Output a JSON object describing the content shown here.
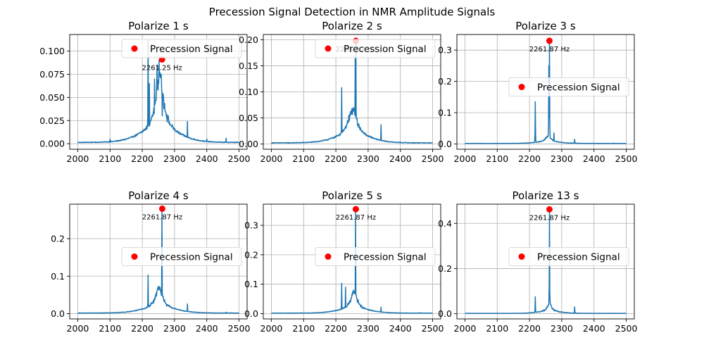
{
  "figure": {
    "title": "Precession Signal Detection in NMR Amplitude Signals"
  },
  "colors": {
    "line": "#1f77b4",
    "marker": "#ff0000",
    "grid": "#b0b0b0",
    "legend_border": "#d9d9d9"
  },
  "chart_data": [
    {
      "type": "line",
      "title": "Polarize 1 s",
      "xlabel": "",
      "ylabel": "",
      "xlim": [
        1975,
        2525
      ],
      "ylim": [
        -0.006,
        0.118
      ],
      "xticks": [
        2000,
        2100,
        2200,
        2300,
        2400,
        2500
      ],
      "yticks": [
        0.0,
        0.025,
        0.05,
        0.075,
        0.1
      ],
      "ytick_labels": [
        "0.000",
        "0.025",
        "0.050",
        "0.075",
        "0.100"
      ],
      "grid": true,
      "legend": {
        "entries": [
          "Precession Signal"
        ],
        "placement": "top-right"
      },
      "series": [
        {
          "kind": "line",
          "profile": {
            "base": 0.0012,
            "peak_center": 2254,
            "peak_amp": 0.062,
            "peak_width": 14,
            "skirt_amp": 0.012,
            "skirt_width": 60,
            "spikes": [
              [
                2100,
                0.005
              ],
              [
                2218,
                0.112
              ],
              [
                2222,
                0.065
              ],
              [
                2238,
                0.07
              ],
              [
                2246,
                0.085
              ],
              [
                2252,
                0.09
              ],
              [
                2258,
                0.075
              ],
              [
                2262,
                0.03
              ],
              [
                2340,
                0.024
              ],
              [
                2400,
                0.005
              ],
              [
                2460,
                0.006
              ]
            ]
          }
        }
      ],
      "marker": {
        "x": 2261.25,
        "y": 0.091
      },
      "annotation": "2261.25 Hz"
    },
    {
      "type": "line",
      "title": "Polarize 2 s",
      "xlabel": "",
      "ylabel": "",
      "xlim": [
        1975,
        2525
      ],
      "ylim": [
        -0.01,
        0.21
      ],
      "xticks": [
        2000,
        2100,
        2200,
        2300,
        2400,
        2500
      ],
      "yticks": [
        0.0,
        0.05,
        0.1,
        0.15,
        0.2
      ],
      "ytick_labels": [
        "0.00",
        "0.05",
        "0.10",
        "0.15",
        "0.20"
      ],
      "grid": true,
      "legend": {
        "entries": [
          "Precession Signal"
        ],
        "placement": "top-right"
      },
      "series": [
        {
          "kind": "line",
          "profile": {
            "base": 0.002,
            "peak_center": 2252,
            "peak_amp": 0.052,
            "peak_width": 16,
            "skirt_amp": 0.012,
            "skirt_width": 55,
            "spikes": [
              [
                2218,
                0.108
              ],
              [
                2260,
                0.165
              ],
              [
                2262,
                0.198
              ],
              [
                2340,
                0.037
              ],
              [
                2400,
                0.004
              ]
            ]
          }
        }
      ],
      "marker": {
        "x": 2261.87,
        "y": 0.198
      },
      "annotation": "2261.87 Hz"
    },
    {
      "type": "line",
      "title": "Polarize 3 s",
      "xlabel": "",
      "ylabel": "",
      "xlim": [
        1975,
        2525
      ],
      "ylim": [
        -0.017,
        0.35
      ],
      "xticks": [
        2000,
        2100,
        2200,
        2300,
        2400,
        2500
      ],
      "yticks": [
        0.0,
        0.1,
        0.2,
        0.3
      ],
      "ytick_labels": [
        "0.0",
        "0.1",
        "0.2",
        "0.3"
      ],
      "grid": true,
      "legend": {
        "entries": [
          "Precession Signal"
        ],
        "placement": "center-right"
      },
      "series": [
        {
          "kind": "line",
          "profile": {
            "base": 0.0015,
            "peak_center": 2258,
            "peak_amp": 0.02,
            "peak_width": 10,
            "skirt_amp": 0.004,
            "skirt_width": 40,
            "spikes": [
              [
                2218,
                0.135
              ],
              [
                2260,
                0.25
              ],
              [
                2262,
                0.33
              ],
              [
                2276,
                0.035
              ],
              [
                2340,
                0.015
              ],
              [
                2460,
                0.003
              ]
            ]
          }
        }
      ],
      "marker": {
        "x": 2261.87,
        "y": 0.33
      },
      "annotation": "2261.87 Hz"
    },
    {
      "type": "line",
      "title": "Polarize 4 s",
      "xlabel": "",
      "ylabel": "",
      "xlim": [
        1975,
        2525
      ],
      "ylim": [
        -0.014,
        0.292
      ],
      "xticks": [
        2000,
        2100,
        2200,
        2300,
        2400,
        2500
      ],
      "yticks": [
        0.0,
        0.1,
        0.2
      ],
      "ytick_labels": [
        "0.0",
        "0.1",
        "0.2"
      ],
      "grid": true,
      "legend": {
        "entries": [
          "Precession Signal"
        ],
        "placement": "center-right"
      },
      "series": [
        {
          "kind": "line",
          "profile": {
            "base": 0.0015,
            "peak_center": 2252,
            "peak_amp": 0.055,
            "peak_width": 13,
            "skirt_amp": 0.012,
            "skirt_width": 55,
            "spikes": [
              [
                2218,
                0.103
              ],
              [
                2261,
                0.278
              ],
              [
                2276,
                0.02
              ],
              [
                2340,
                0.026
              ],
              [
                2460,
                0.004
              ]
            ]
          }
        }
      ],
      "marker": {
        "x": 2261.87,
        "y": 0.28
      },
      "annotation": "2261.87 Hz"
    },
    {
      "type": "line",
      "title": "Polarize 5 s",
      "xlabel": "",
      "ylabel": "",
      "xlim": [
        1975,
        2525
      ],
      "ylim": [
        -0.018,
        0.372
      ],
      "xticks": [
        2000,
        2100,
        2200,
        2300,
        2400,
        2500
      ],
      "yticks": [
        0.0,
        0.1,
        0.2,
        0.3
      ],
      "ytick_labels": [
        "0.0",
        "0.1",
        "0.2",
        "0.3"
      ],
      "grid": true,
      "legend": {
        "entries": [
          "Precession Signal"
        ],
        "placement": "center-right"
      },
      "series": [
        {
          "kind": "line",
          "profile": {
            "base": 0.0015,
            "peak_center": 2256,
            "peak_amp": 0.06,
            "peak_width": 12,
            "skirt_amp": 0.012,
            "skirt_width": 50,
            "spikes": [
              [
                2218,
                0.103
              ],
              [
                2230,
                0.09
              ],
              [
                2261,
                0.355
              ],
              [
                2340,
                0.022
              ],
              [
                2460,
                0.003
              ]
            ]
          }
        }
      ],
      "marker": {
        "x": 2261.87,
        "y": 0.355
      },
      "annotation": "2261.87 Hz"
    },
    {
      "type": "line",
      "title": "Polarize 13 s",
      "xlabel": "",
      "ylabel": "",
      "xlim": [
        1975,
        2525
      ],
      "ylim": [
        -0.023,
        0.485
      ],
      "xticks": [
        2000,
        2100,
        2200,
        2300,
        2400,
        2500
      ],
      "yticks": [
        0.0,
        0.2,
        0.4
      ],
      "ytick_labels": [
        "0.0",
        "0.2",
        "0.4"
      ],
      "grid": true,
      "legend": {
        "entries": [
          "Precession Signal"
        ],
        "placement": "center-right"
      },
      "series": [
        {
          "kind": "line",
          "profile": {
            "base": 0.0015,
            "peak_center": 2262,
            "peak_amp": 0.04,
            "peak_width": 7,
            "skirt_amp": 0.008,
            "skirt_width": 35,
            "spikes": [
              [
                2218,
                0.075
              ],
              [
                2262,
                0.462
              ],
              [
                2340,
                0.03
              ],
              [
                2460,
                0.003
              ]
            ]
          }
        }
      ],
      "marker": {
        "x": 2261.87,
        "y": 0.462
      },
      "annotation": "2261.87 Hz"
    }
  ]
}
